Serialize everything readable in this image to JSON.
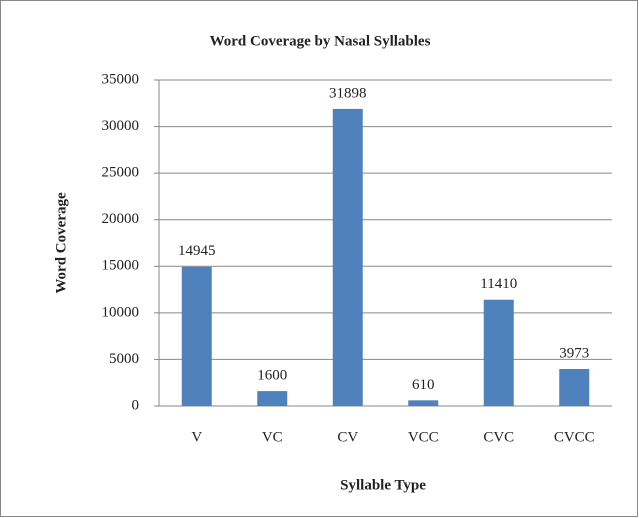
{
  "chart_data": {
    "type": "bar",
    "title": "Word Coverage by Nasal Syllables",
    "x_label": "Syllable Type",
    "y_label": "Word Coverage",
    "categories": [
      "V",
      "VC",
      "CV",
      "VCC",
      "CVC",
      "CVCC"
    ],
    "values": [
      14945,
      1600,
      31898,
      610,
      11410,
      3973
    ],
    "color": "#4f81bd",
    "ylim": [
      0,
      35000
    ],
    "yticks": [
      0,
      5000,
      10000,
      15000,
      20000,
      25000,
      30000,
      35000
    ],
    "grid": true
  }
}
